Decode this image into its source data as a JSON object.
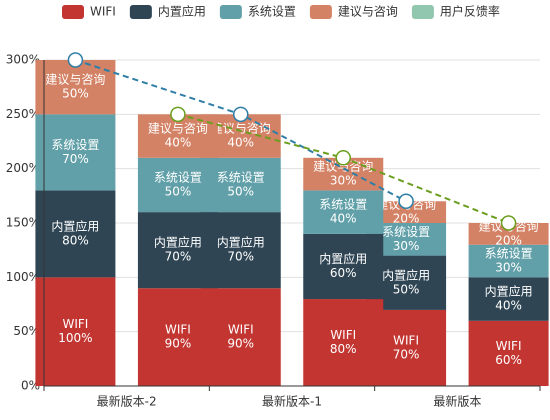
{
  "chart_data": {
    "type": "bar",
    "categories": [
      "最新版本-2",
      "最新版本-1",
      "最新版本"
    ],
    "series": [
      {
        "name": "WIFI",
        "color": "#c23531",
        "values": [
          [
            100,
            90
          ],
          [
            90,
            80
          ],
          [
            70,
            60
          ]
        ],
        "value_labels": [
          [
            "100%",
            "90%"
          ],
          [
            "90%",
            "80%"
          ],
          [
            "70%",
            "60%"
          ]
        ]
      },
      {
        "name": "内置应用",
        "color": "#2f4554",
        "values": [
          [
            80,
            70
          ],
          [
            70,
            60
          ],
          [
            50,
            40
          ]
        ],
        "value_labels": [
          [
            "80%",
            "70%"
          ],
          [
            "70%",
            "60%"
          ],
          [
            "50%",
            "40%"
          ]
        ]
      },
      {
        "name": "系统设置",
        "color": "#61a0a8",
        "values": [
          [
            70,
            50
          ],
          [
            50,
            40
          ],
          [
            30,
            30
          ]
        ],
        "value_labels": [
          [
            "70%",
            "50%"
          ],
          [
            "50%",
            "40%"
          ],
          [
            "30%",
            "30%"
          ]
        ]
      },
      {
        "name": "建议与咨询",
        "color": "#d48265",
        "values": [
          [
            50,
            40
          ],
          [
            40,
            30
          ],
          [
            20,
            20
          ]
        ],
        "value_labels": [
          [
            "50%",
            "40%"
          ],
          [
            "40%",
            "30%"
          ],
          [
            "20%",
            "20%"
          ]
        ]
      }
    ],
    "lines": [
      {
        "color": "#2f7ea6",
        "values": [
          300,
          250,
          170
        ],
        "group": 0
      },
      {
        "name": "用户反馈率",
        "color": "#91c7ae",
        "line_color": "#6b9e1e",
        "values": [
          250,
          210,
          150
        ],
        "group": 1
      }
    ],
    "ylim": [
      0,
      300
    ],
    "yticks": [
      {
        "value": 0,
        "label": "0%"
      },
      {
        "value": 50,
        "label": "50%"
      },
      {
        "value": 100,
        "label": "100%"
      },
      {
        "value": 150,
        "label": "150%"
      },
      {
        "value": 200,
        "label": "200%"
      },
      {
        "value": 250,
        "label": "250%"
      },
      {
        "value": 300,
        "label": "300%"
      }
    ],
    "grid": true
  }
}
